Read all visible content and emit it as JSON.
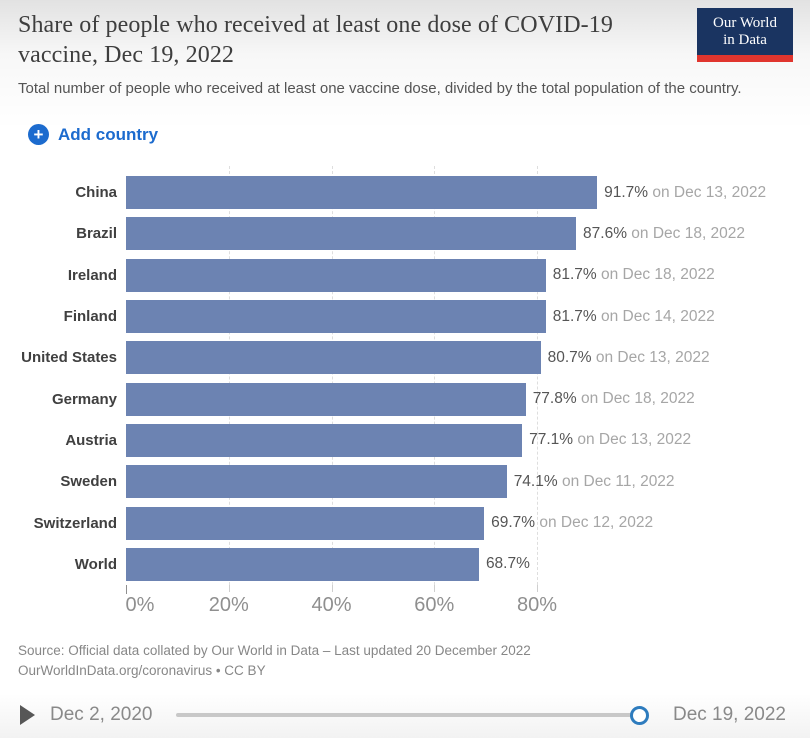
{
  "header": {
    "title": "Share of people who received at least one dose of COVID-19 vaccine, Dec 19, 2022",
    "subtitle": "Total number of people who received at least one vaccine dose, divided by the total population of the country.",
    "logo_line1": "Our World",
    "logo_line2": "in Data"
  },
  "controls": {
    "add_country_label": "Add country",
    "plus_icon": "+"
  },
  "chart_data": {
    "type": "bar",
    "orientation": "horizontal",
    "title": "Share of people who received at least one dose of COVID-19 vaccine, Dec 19, 2022",
    "categories": [
      "China",
      "Brazil",
      "Ireland",
      "Finland",
      "United States",
      "Germany",
      "Austria",
      "Sweden",
      "Switzerland",
      "World"
    ],
    "values": [
      91.7,
      87.6,
      81.7,
      81.7,
      80.7,
      77.8,
      77.1,
      74.1,
      69.7,
      68.7
    ],
    "value_labels": [
      "91.7%",
      "87.6%",
      "81.7%",
      "81.7%",
      "80.7%",
      "77.8%",
      "77.1%",
      "74.1%",
      "69.7%",
      "68.7%"
    ],
    "date_labels": [
      " on Dec 13, 2022",
      " on Dec 18, 2022",
      " on Dec 18, 2022",
      " on Dec 14, 2022",
      " on Dec 13, 2022",
      " on Dec 18, 2022",
      " on Dec 13, 2022",
      " on Dec 11, 2022",
      " on Dec 12, 2022",
      ""
    ],
    "x_ticks": [
      "0%",
      "20%",
      "40%",
      "60%",
      "80%"
    ],
    "x_tick_values": [
      0,
      20,
      40,
      60,
      80
    ],
    "xlim": [
      0,
      92
    ],
    "grid": "dashed-vertical",
    "legend": "none",
    "bar_color": "#6c83b2"
  },
  "footer": {
    "source_line1": "Source: Official data collated by Our World in Data – Last updated 20 December 2022",
    "source_line2": "OurWorldInData.org/coronavirus • CC BY"
  },
  "timeline": {
    "start_label": "Dec 2, 2020",
    "end_label": "Dec 19, 2022"
  },
  "colors": {
    "bar": "#6c83b2",
    "accent_blue": "#1c6bce",
    "logo_navy": "#1a3461",
    "logo_red": "#e0352e",
    "handle_ring": "#2e7cbe"
  }
}
